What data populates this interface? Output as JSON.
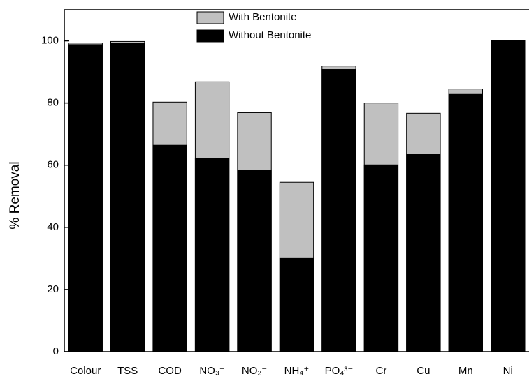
{
  "chart_data": {
    "type": "overlapping_bar",
    "y_label": "% Removal",
    "categories": [
      "Colour",
      "TSS",
      "COD",
      "NO₃⁻",
      "NO₂⁻",
      "NH₄⁺",
      "PO₄³⁻",
      "Cr",
      "Cu",
      "Mn",
      "Ni"
    ],
    "series": [
      {
        "name": "With Bentonite",
        "color": "#c0c0c0",
        "values": [
          99.3,
          99.8,
          80.3,
          86.8,
          76.9,
          54.5,
          91.9,
          80.0,
          76.7,
          84.5,
          100
        ]
      },
      {
        "name": "Without Bentonite",
        "color": "#000000",
        "values": [
          98.8,
          99.3,
          66.4,
          62.1,
          58.3,
          30.0,
          90.8,
          60.1,
          63.5,
          83.0,
          100
        ]
      }
    ],
    "ylim": [
      0,
      110
    ],
    "yticks": [
      0,
      20,
      40,
      60,
      80,
      100
    ],
    "legend": "top"
  }
}
